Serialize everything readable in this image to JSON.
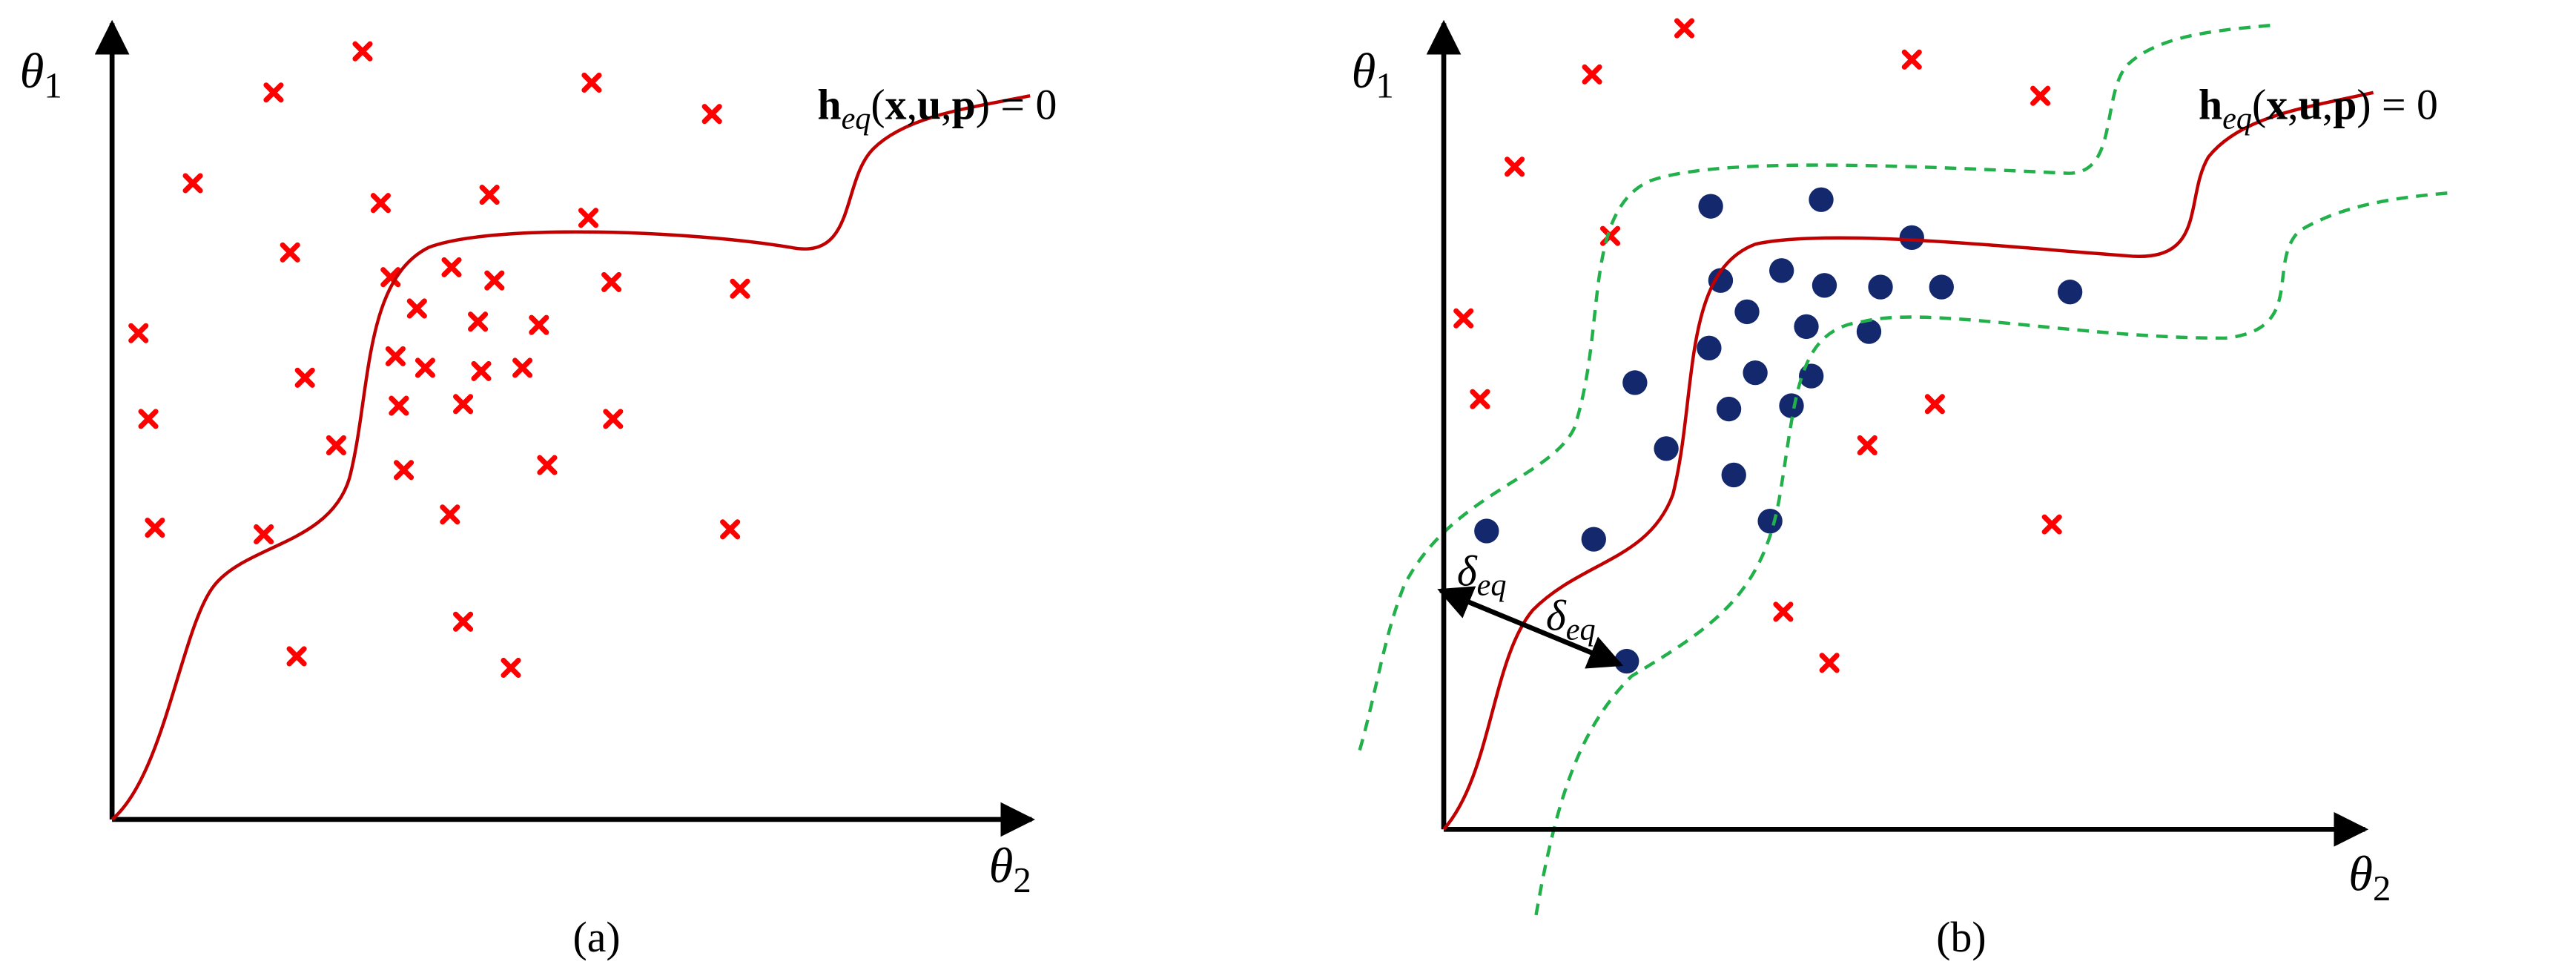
{
  "panels": [
    {
      "label": "(a)",
      "y_axis": {
        "symbol": "θ",
        "subscript": "1"
      },
      "x_axis": {
        "symbol": "θ",
        "subscript": "2"
      },
      "equation": {
        "function": "h",
        "subscript": "eq",
        "open": "(",
        "x": "x",
        "separator": ",",
        "u": "u",
        "p": "p",
        "close": ") = 0"
      }
    },
    {
      "label": "(b)",
      "y_axis": {
        "symbol": "θ",
        "subscript": "1"
      },
      "x_axis": {
        "symbol": "θ",
        "subscript": "2"
      },
      "equation": {
        "function": "h",
        "subscript": "eq",
        "open": "(",
        "x": "x",
        "separator": ",",
        "u": "u",
        "p": "p",
        "close": ") = 0"
      },
      "distance": {
        "symbol": "δ",
        "subscript": "eq"
      }
    }
  ]
}
